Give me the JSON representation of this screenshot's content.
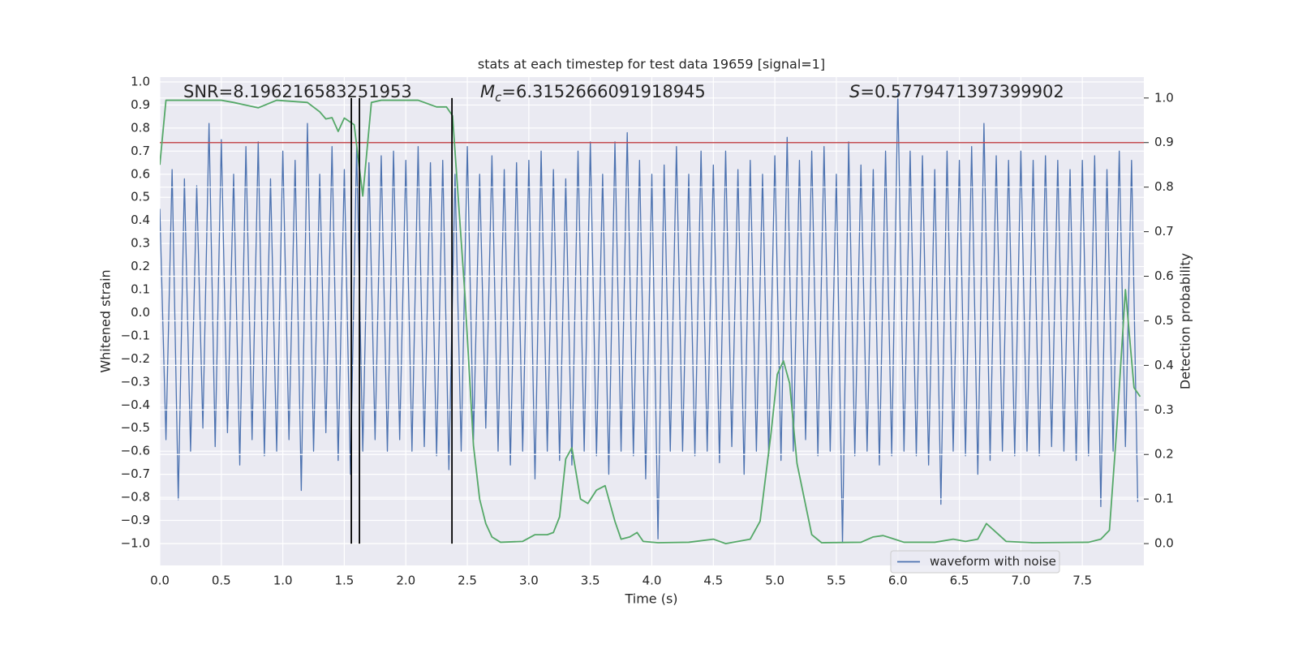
{
  "chart_data": {
    "type": "line",
    "title": "stats at each timestep for test data 19659 [signal=1]",
    "x_label": "Time (s)",
    "y_label": "Whitened strain",
    "y2_label": "Detection probability",
    "xlim": [
      0,
      8.0
    ],
    "ylim": [
      -1.095,
      1.021
    ],
    "y2lim": [
      -0.049,
      1.047
    ],
    "grid": true,
    "background": "#eaeaf2",
    "legend": "lower right",
    "xticks": [
      {
        "value": 0.0,
        "label": "0.0"
      },
      {
        "value": 0.5,
        "label": "0.5"
      },
      {
        "value": 1.0,
        "label": "1.0"
      },
      {
        "value": 1.5,
        "label": "1.5"
      },
      {
        "value": 2.0,
        "label": "2.0"
      },
      {
        "value": 2.5,
        "label": "2.5"
      },
      {
        "value": 3.0,
        "label": "3.0"
      },
      {
        "value": 3.5,
        "label": "3.5"
      },
      {
        "value": 4.0,
        "label": "4.0"
      },
      {
        "value": 4.5,
        "label": "4.5"
      },
      {
        "value": 5.0,
        "label": "5.0"
      },
      {
        "value": 5.5,
        "label": "5.5"
      },
      {
        "value": 6.0,
        "label": "6.0"
      },
      {
        "value": 6.5,
        "label": "6.5"
      },
      {
        "value": 7.0,
        "label": "7.0"
      },
      {
        "value": 7.5,
        "label": "7.5"
      }
    ],
    "yticks": [
      {
        "value": -1.0,
        "label": "−1.0"
      },
      {
        "value": -0.9,
        "label": "−0.9"
      },
      {
        "value": -0.8,
        "label": "−0.8"
      },
      {
        "value": -0.7,
        "label": "−0.7"
      },
      {
        "value": -0.6,
        "label": "−0.6"
      },
      {
        "value": -0.5,
        "label": "−0.5"
      },
      {
        "value": -0.4,
        "label": "−0.4"
      },
      {
        "value": -0.3,
        "label": "−0.3"
      },
      {
        "value": -0.2,
        "label": "−0.2"
      },
      {
        "value": -0.1,
        "label": "−0.1"
      },
      {
        "value": 0.0,
        "label": "0.0"
      },
      {
        "value": 0.1,
        "label": "0.1"
      },
      {
        "value": 0.2,
        "label": "0.2"
      },
      {
        "value": 0.3,
        "label": "0.3"
      },
      {
        "value": 0.4,
        "label": "0.4"
      },
      {
        "value": 0.5,
        "label": "0.5"
      },
      {
        "value": 0.6,
        "label": "0.6"
      },
      {
        "value": 0.7,
        "label": "0.7"
      },
      {
        "value": 0.8,
        "label": "0.8"
      },
      {
        "value": 0.9,
        "label": "0.9"
      },
      {
        "value": 1.0,
        "label": "1.0"
      }
    ],
    "y2ticks": [
      {
        "value": 0.0,
        "label": "0.0"
      },
      {
        "value": 0.1,
        "label": "0.1"
      },
      {
        "value": 0.2,
        "label": "0.2"
      },
      {
        "value": 0.3,
        "label": "0.3"
      },
      {
        "value": 0.4,
        "label": "0.4"
      },
      {
        "value": 0.5,
        "label": "0.5"
      },
      {
        "value": 0.6,
        "label": "0.6"
      },
      {
        "value": 0.7,
        "label": "0.7"
      },
      {
        "value": 0.8,
        "label": "0.8"
      },
      {
        "value": 0.9,
        "label": "0.9"
      },
      {
        "value": 1.0,
        "label": "1.0"
      }
    ],
    "annotations": [
      {
        "symbol": "SNR",
        "text": "=8.196216583251953"
      },
      {
        "symbol": "M",
        "italic": true,
        "subscript": "c",
        "text": "=6.3152666091918945"
      },
      {
        "symbol": "S",
        "italic": true,
        "text": "=0.5779471397399902"
      }
    ],
    "threshold": {
      "value": 0.9,
      "axis": "y2",
      "color": "#c44e52"
    },
    "vlines": {
      "values": [
        1.557,
        1.623,
        2.375
      ],
      "color": "#000000",
      "axis": "y2",
      "span": [
        0,
        1
      ]
    },
    "series": [
      {
        "name": "waveform with noise",
        "color": "#4c72b0",
        "x": [
          0,
          0.05,
          0.1,
          0.15,
          0.2,
          0.25,
          0.3,
          0.35,
          0.4,
          0.45,
          0.5,
          0.55,
          0.6,
          0.65,
          0.7,
          0.75,
          0.8,
          0.85,
          0.9,
          0.95,
          1.0,
          1.05,
          1.1,
          1.15,
          1.2,
          1.25,
          1.3,
          1.35,
          1.4,
          1.45,
          1.5,
          1.55,
          1.6,
          1.65,
          1.7,
          1.75,
          1.8,
          1.85,
          1.9,
          1.95,
          2.0,
          2.05,
          2.1,
          2.15,
          2.2,
          2.25,
          2.3,
          2.35,
          2.4,
          2.45,
          2.5,
          2.55,
          2.6,
          2.65,
          2.7,
          2.75,
          2.8,
          2.85,
          2.9,
          2.95,
          3.0,
          3.05,
          3.1,
          3.15,
          3.2,
          3.25,
          3.3,
          3.35,
          3.4,
          3.45,
          3.5,
          3.55,
          3.6,
          3.65,
          3.7,
          3.75,
          3.8,
          3.85,
          3.9,
          3.95,
          4.0,
          4.05,
          4.1,
          4.15,
          4.2,
          4.25,
          4.3,
          4.35,
          4.4,
          4.45,
          4.5,
          4.55,
          4.6,
          4.65,
          4.7,
          4.75,
          4.8,
          4.85,
          4.9,
          4.95,
          5.0,
          5.05,
          5.1,
          5.15,
          5.2,
          5.25,
          5.3,
          5.35,
          5.4,
          5.45,
          5.5,
          5.55,
          5.6,
          5.65,
          5.7,
          5.75,
          5.8,
          5.85,
          5.9,
          5.95,
          6.0,
          6.05,
          6.1,
          6.15,
          6.2,
          6.25,
          6.3,
          6.35,
          6.4,
          6.45,
          6.5,
          6.55,
          6.6,
          6.65,
          6.7,
          6.75,
          6.8,
          6.85,
          6.9,
          6.95,
          7.0,
          7.05,
          7.1,
          7.15,
          7.2,
          7.25,
          7.3,
          7.35,
          7.4,
          7.45,
          7.5,
          7.55,
          7.6,
          7.65,
          7.7,
          7.75,
          7.8,
          7.85,
          7.9,
          7.95
        ],
        "values": [
          0.45,
          -0.55,
          0.62,
          -0.81,
          0.58,
          -0.6,
          0.55,
          -0.5,
          0.82,
          -0.58,
          0.75,
          -0.52,
          0.6,
          -0.66,
          0.72,
          -0.55,
          0.74,
          -0.62,
          0.58,
          -0.6,
          0.7,
          -0.55,
          0.66,
          -0.77,
          0.82,
          -0.6,
          0.6,
          -0.52,
          0.72,
          -0.64,
          0.62,
          -0.7,
          0.72,
          -0.6,
          0.65,
          -0.55,
          0.68,
          -0.6,
          0.7,
          -0.55,
          0.66,
          -0.6,
          0.72,
          -0.58,
          0.65,
          -0.62,
          0.66,
          -0.68,
          0.6,
          -0.6,
          0.72,
          -0.55,
          0.6,
          -0.5,
          0.68,
          -0.6,
          0.62,
          -0.66,
          0.65,
          -0.6,
          0.66,
          -0.72,
          0.7,
          -0.6,
          0.62,
          -0.64,
          0.58,
          -0.66,
          0.7,
          -0.6,
          0.74,
          -0.62,
          0.6,
          -0.7,
          0.74,
          -0.6,
          0.78,
          -0.62,
          0.66,
          -0.72,
          0.6,
          -0.98,
          0.64,
          -0.6,
          0.72,
          -0.6,
          0.6,
          -0.62,
          0.7,
          -0.6,
          0.64,
          -0.65,
          0.7,
          -0.58,
          0.62,
          -0.7,
          0.66,
          -0.6,
          0.6,
          -0.62,
          0.68,
          -0.64,
          0.76,
          -0.6,
          0.66,
          -0.55,
          0.7,
          -0.62,
          0.72,
          -0.6,
          0.6,
          -1.0,
          0.74,
          -0.62,
          0.64,
          -0.6,
          0.62,
          -0.66,
          0.7,
          -0.62,
          0.95,
          -0.6,
          0.7,
          -0.62,
          0.68,
          -0.66,
          0.62,
          -0.83,
          0.7,
          -0.6,
          0.66,
          -0.62,
          0.72,
          -0.7,
          0.82,
          -0.64,
          0.68,
          -0.6,
          0.66,
          -0.62,
          0.7,
          -0.6,
          0.66,
          -0.62,
          0.68,
          -0.58,
          0.66,
          -0.6,
          0.62,
          -0.64,
          0.66,
          -0.62,
          0.68,
          -0.84,
          0.62,
          -0.6,
          0.7,
          -0.58,
          0.66,
          -0.82
        ]
      },
      {
        "color": "#55a868",
        "axis": "y2",
        "x": [
          0,
          0.05,
          0.5,
          0.6,
          0.8,
          0.95,
          1.2,
          1.3,
          1.35,
          1.4,
          1.45,
          1.5,
          1.58,
          1.65,
          1.72,
          1.8,
          2.1,
          2.2,
          2.25,
          2.33,
          2.38,
          2.42,
          2.48,
          2.55,
          2.6,
          2.65,
          2.7,
          2.77,
          2.95,
          3.05,
          3.15,
          3.2,
          3.25,
          3.3,
          3.35,
          3.42,
          3.48,
          3.55,
          3.62,
          3.7,
          3.75,
          3.82,
          3.88,
          3.93,
          4.05,
          4.3,
          4.5,
          4.6,
          4.8,
          4.88,
          4.97,
          5.02,
          5.07,
          5.12,
          5.18,
          5.3,
          5.38,
          5.7,
          5.8,
          5.88,
          5.95,
          6.05,
          6.3,
          6.45,
          6.55,
          6.65,
          6.72,
          6.8,
          6.88,
          7.1,
          7.55,
          7.65,
          7.72,
          7.78,
          7.85,
          7.92,
          7.97
        ],
        "values": [
          0.85,
          0.995,
          0.995,
          0.99,
          0.978,
          0.995,
          0.99,
          0.969,
          0.953,
          0.956,
          0.925,
          0.955,
          0.94,
          0.78,
          0.99,
          0.995,
          0.995,
          0.985,
          0.98,
          0.98,
          0.96,
          0.8,
          0.56,
          0.22,
          0.1,
          0.045,
          0.015,
          0.003,
          0.005,
          0.02,
          0.02,
          0.025,
          0.06,
          0.19,
          0.215,
          0.1,
          0.09,
          0.12,
          0.13,
          0.05,
          0.01,
          0.015,
          0.025,
          0.005,
          0.002,
          0.003,
          0.01,
          0.0,
          0.01,
          0.05,
          0.25,
          0.38,
          0.41,
          0.36,
          0.18,
          0.02,
          0.002,
          0.003,
          0.015,
          0.018,
          0.012,
          0.003,
          0.003,
          0.01,
          0.005,
          0.01,
          0.045,
          0.025,
          0.005,
          0.002,
          0.003,
          0.01,
          0.03,
          0.26,
          0.57,
          0.35,
          0.33
        ]
      }
    ]
  }
}
